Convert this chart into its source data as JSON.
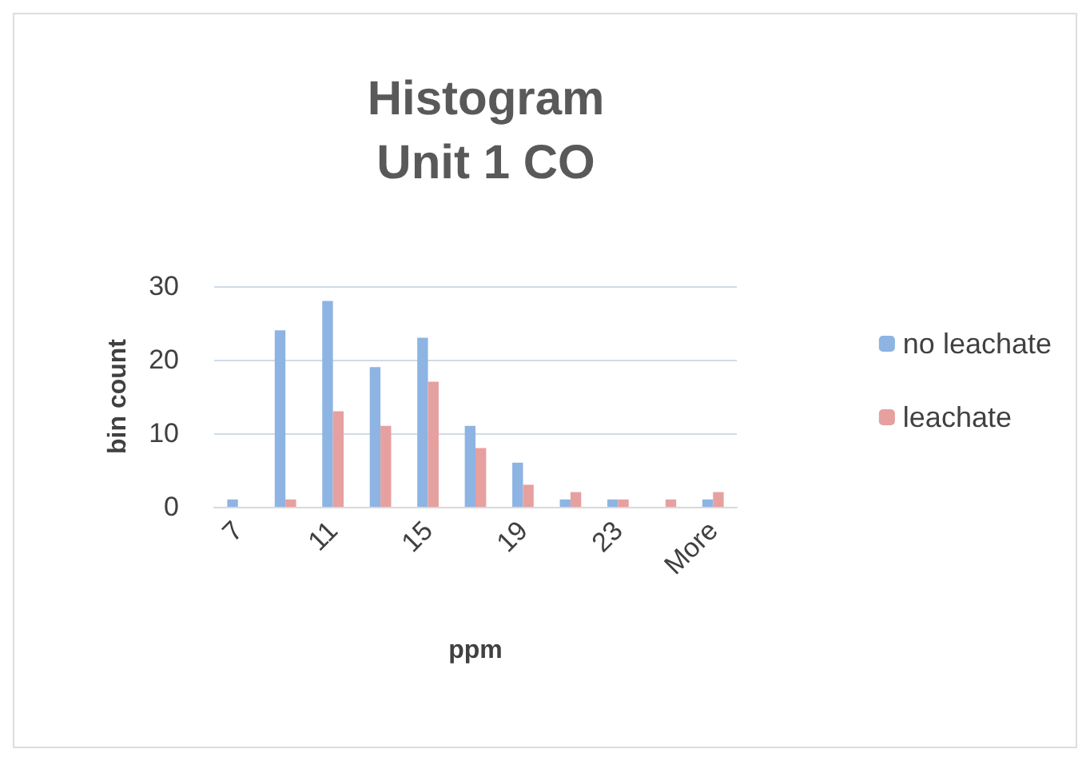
{
  "chart_data": {
    "type": "bar",
    "title": "Histogram\nUnit 1 CO",
    "xlabel": "ppm",
    "ylabel": "bin count",
    "categories": [
      "7",
      null,
      "11",
      null,
      "15",
      null,
      "19",
      null,
      "23",
      null,
      "More"
    ],
    "series": [
      {
        "name": "no leachate",
        "color": "#8db4e2",
        "values": [
          1,
          24,
          28,
          19,
          23,
          11,
          6,
          1,
          1,
          0,
          1
        ]
      },
      {
        "name": "leachate",
        "color": "#e6a0a0",
        "values": [
          0,
          1,
          13,
          11,
          17,
          8,
          3,
          2,
          1,
          1,
          2
        ]
      }
    ],
    "ylim": [
      0,
      30
    ],
    "yticks": [
      0,
      10,
      20,
      30
    ],
    "grid": "y",
    "legend": "right"
  }
}
